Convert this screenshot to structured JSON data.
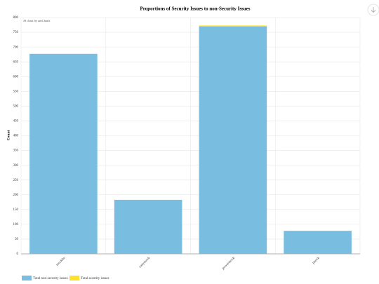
{
  "chart_data": {
    "type": "stacked_bar",
    "title": "Proportions of Security Issues to non-Security Issues",
    "credit": "JS chart by amCharts",
    "y_label": "Count",
    "categories": [
      "mockito",
      "easymock",
      "powermock",
      "jmock"
    ],
    "series": [
      {
        "name": "Total non-security issues",
        "color": "#79bde0",
        "values": [
          677,
          183,
          770,
          78
        ]
      },
      {
        "name": "Total security issues",
        "color": "#fde12d",
        "values": [
          0,
          0,
          3,
          0
        ]
      }
    ],
    "ylim": [
      0,
      800
    ],
    "yticks": [
      0,
      50,
      100,
      150,
      200,
      250,
      300,
      350,
      400,
      450,
      500,
      550,
      600,
      650,
      700,
      750,
      800
    ],
    "grid": true,
    "legend": "bottom-left"
  }
}
